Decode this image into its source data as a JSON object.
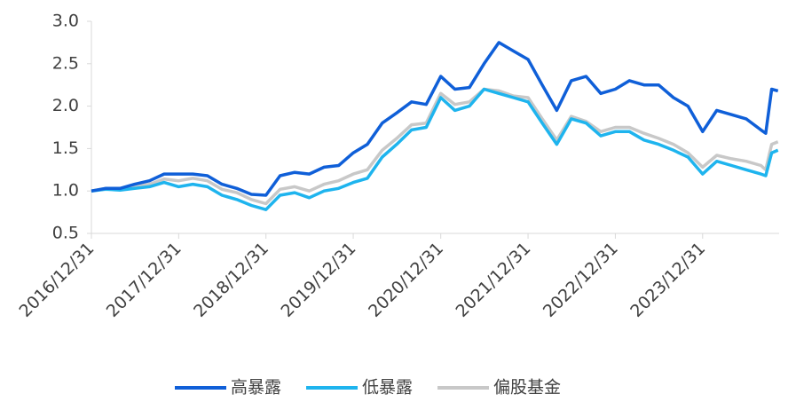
{
  "chart_data": {
    "type": "line",
    "x": [
      "2016/12/31",
      "2017/02/28",
      "2017/04/30",
      "2017/06/30",
      "2017/08/31",
      "2017/10/31",
      "2017/12/31",
      "2018/02/28",
      "2018/04/30",
      "2018/06/30",
      "2018/08/31",
      "2018/10/31",
      "2018/12/31",
      "2019/02/28",
      "2019/04/30",
      "2019/06/30",
      "2019/08/31",
      "2019/10/31",
      "2019/12/31",
      "2020/02/28",
      "2020/04/30",
      "2020/06/30",
      "2020/08/31",
      "2020/10/31",
      "2020/12/31",
      "2021/02/28",
      "2021/04/30",
      "2021/06/30",
      "2021/08/31",
      "2021/10/31",
      "2021/12/31",
      "2022/02/28",
      "2022/04/30",
      "2022/06/30",
      "2022/08/31",
      "2022/10/31",
      "2022/12/31",
      "2023/02/28",
      "2023/04/30",
      "2023/06/30",
      "2023/08/31",
      "2023/10/31",
      "2023/12/31",
      "2024/02/28",
      "2024/04/30",
      "2024/06/30",
      "2024/08/31",
      "2024/09/20",
      "2024/10/15",
      "2024/11/10"
    ],
    "series": [
      {
        "name": "高暴露",
        "color": "#0f5fd8",
        "values": [
          1.0,
          1.03,
          1.03,
          1.08,
          1.12,
          1.2,
          1.2,
          1.2,
          1.18,
          1.08,
          1.03,
          0.96,
          0.95,
          1.18,
          1.22,
          1.2,
          1.28,
          1.3,
          1.45,
          1.55,
          1.8,
          1.92,
          2.05,
          2.02,
          2.35,
          2.2,
          2.22,
          2.5,
          2.75,
          2.65,
          2.55,
          2.25,
          1.95,
          2.3,
          2.35,
          2.15,
          2.2,
          2.3,
          2.25,
          2.25,
          2.1,
          2.0,
          1.7,
          1.95,
          1.9,
          1.85,
          1.72,
          1.68,
          2.2,
          2.18
        ]
      },
      {
        "name": "低暴露",
        "color": "#1eb4ee",
        "values": [
          1.0,
          1.02,
          1.01,
          1.03,
          1.05,
          1.1,
          1.05,
          1.08,
          1.05,
          0.95,
          0.9,
          0.83,
          0.78,
          0.95,
          0.98,
          0.92,
          1.0,
          1.03,
          1.1,
          1.15,
          1.4,
          1.55,
          1.72,
          1.75,
          2.1,
          1.95,
          2.0,
          2.2,
          2.15,
          2.1,
          2.05,
          1.8,
          1.55,
          1.85,
          1.8,
          1.65,
          1.7,
          1.7,
          1.6,
          1.55,
          1.48,
          1.4,
          1.2,
          1.35,
          1.3,
          1.25,
          1.2,
          1.18,
          1.45,
          1.48
        ]
      },
      {
        "name": "偏股基金",
        "color": "#c8c8c8",
        "values": [
          1.0,
          1.03,
          1.02,
          1.05,
          1.08,
          1.14,
          1.12,
          1.15,
          1.12,
          1.02,
          0.98,
          0.9,
          0.85,
          1.02,
          1.05,
          1.0,
          1.08,
          1.12,
          1.2,
          1.25,
          1.48,
          1.62,
          1.78,
          1.8,
          2.15,
          2.02,
          2.05,
          2.2,
          2.18,
          2.12,
          2.1,
          1.85,
          1.6,
          1.88,
          1.82,
          1.7,
          1.75,
          1.75,
          1.68,
          1.62,
          1.55,
          1.45,
          1.28,
          1.42,
          1.38,
          1.35,
          1.3,
          1.25,
          1.55,
          1.58
        ]
      }
    ],
    "xlim": [
      "2016/12/31",
      "2024/11/15"
    ],
    "xticks": [
      "2016/12/31",
      "2017/12/31",
      "2018/12/31",
      "2019/12/31",
      "2020/12/31",
      "2021/12/31",
      "2022/12/31",
      "2023/12/31"
    ],
    "ylim": [
      0.5,
      3.0
    ],
    "yticks": [
      0.5,
      {
        "value": 1,
        "label": "1.0"
      },
      1.5,
      {
        "value": 2,
        "label": "2.0"
      },
      2.5,
      {
        "value": 3,
        "label": "3.0"
      }
    ],
    "legend": "bottom"
  }
}
